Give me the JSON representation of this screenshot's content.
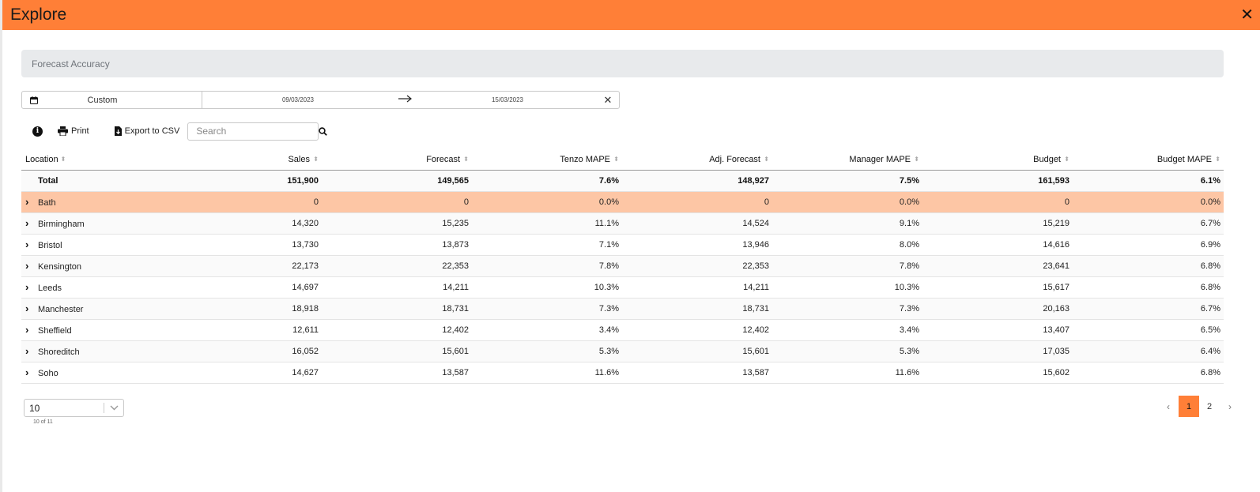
{
  "window": {
    "title": "Explore",
    "close_label": "✕"
  },
  "section": {
    "title": "Forecast Accuracy"
  },
  "date_range": {
    "preset": "Custom",
    "start": "09/03/2023",
    "arrow": "→",
    "end": "15/03/2023",
    "clear_label": "✕"
  },
  "toolbar": {
    "info_label": "i",
    "print_label": "Print",
    "export_label": "Export to CSV",
    "search_placeholder": "Search"
  },
  "table": {
    "columns": [
      "Location",
      "Sales",
      "Forecast",
      "Tenzo MAPE",
      "Adj. Forecast",
      "Manager MAPE",
      "Budget",
      "Budget MAPE"
    ],
    "total": {
      "location": "Total",
      "sales": "151,900",
      "forecast": "149,565",
      "tenzo_mape": "7.6%",
      "adj_forecast": "148,927",
      "manager_mape": "7.5%",
      "budget": "161,593",
      "budget_mape": "6.1%"
    },
    "rows": [
      {
        "location": "Bath",
        "sales": "0",
        "forecast": "0",
        "tenzo_mape": "0.0%",
        "adj_forecast": "0",
        "manager_mape": "0.0%",
        "budget": "0",
        "budget_mape": "0.0%"
      },
      {
        "location": "Birmingham",
        "sales": "14,320",
        "forecast": "15,235",
        "tenzo_mape": "11.1%",
        "adj_forecast": "14,524",
        "manager_mape": "9.1%",
        "budget": "15,219",
        "budget_mape": "6.7%"
      },
      {
        "location": "Bristol",
        "sales": "13,730",
        "forecast": "13,873",
        "tenzo_mape": "7.1%",
        "adj_forecast": "13,946",
        "manager_mape": "8.0%",
        "budget": "14,616",
        "budget_mape": "6.9%"
      },
      {
        "location": "Kensington",
        "sales": "22,173",
        "forecast": "22,353",
        "tenzo_mape": "7.8%",
        "adj_forecast": "22,353",
        "manager_mape": "7.8%",
        "budget": "23,641",
        "budget_mape": "6.8%"
      },
      {
        "location": "Leeds",
        "sales": "14,697",
        "forecast": "14,211",
        "tenzo_mape": "10.3%",
        "adj_forecast": "14,211",
        "manager_mape": "10.3%",
        "budget": "15,617",
        "budget_mape": "6.8%"
      },
      {
        "location": "Manchester",
        "sales": "18,918",
        "forecast": "18,731",
        "tenzo_mape": "7.3%",
        "adj_forecast": "18,731",
        "manager_mape": "7.3%",
        "budget": "20,163",
        "budget_mape": "6.7%"
      },
      {
        "location": "Sheffield",
        "sales": "12,611",
        "forecast": "12,402",
        "tenzo_mape": "3.4%",
        "adj_forecast": "12,402",
        "manager_mape": "3.4%",
        "budget": "13,407",
        "budget_mape": "6.5%"
      },
      {
        "location": "Shoreditch",
        "sales": "16,052",
        "forecast": "15,601",
        "tenzo_mape": "5.3%",
        "adj_forecast": "15,601",
        "manager_mape": "5.3%",
        "budget": "17,035",
        "budget_mape": "6.4%"
      },
      {
        "location": "Soho",
        "sales": "14,627",
        "forecast": "13,587",
        "tenzo_mape": "11.6%",
        "adj_forecast": "13,587",
        "manager_mape": "11.6%",
        "budget": "15,602",
        "budget_mape": "6.8%"
      }
    ]
  },
  "pagination": {
    "page_size": "10",
    "count_text": "10 of 11",
    "prev_label": "‹",
    "pages": [
      "1",
      "2"
    ],
    "next_label": "›",
    "current_page": "1"
  },
  "colors": {
    "accent": "#ff7f37",
    "highlight_row": "#fdc6a5",
    "section_bg": "#e8eaec"
  },
  "icons": [
    "close-icon",
    "calendar-icon",
    "arrow-right-icon",
    "info-icon",
    "print-icon",
    "file-download-icon",
    "search-icon",
    "sort-icon",
    "chevron-right-icon",
    "chevron-down-icon"
  ]
}
